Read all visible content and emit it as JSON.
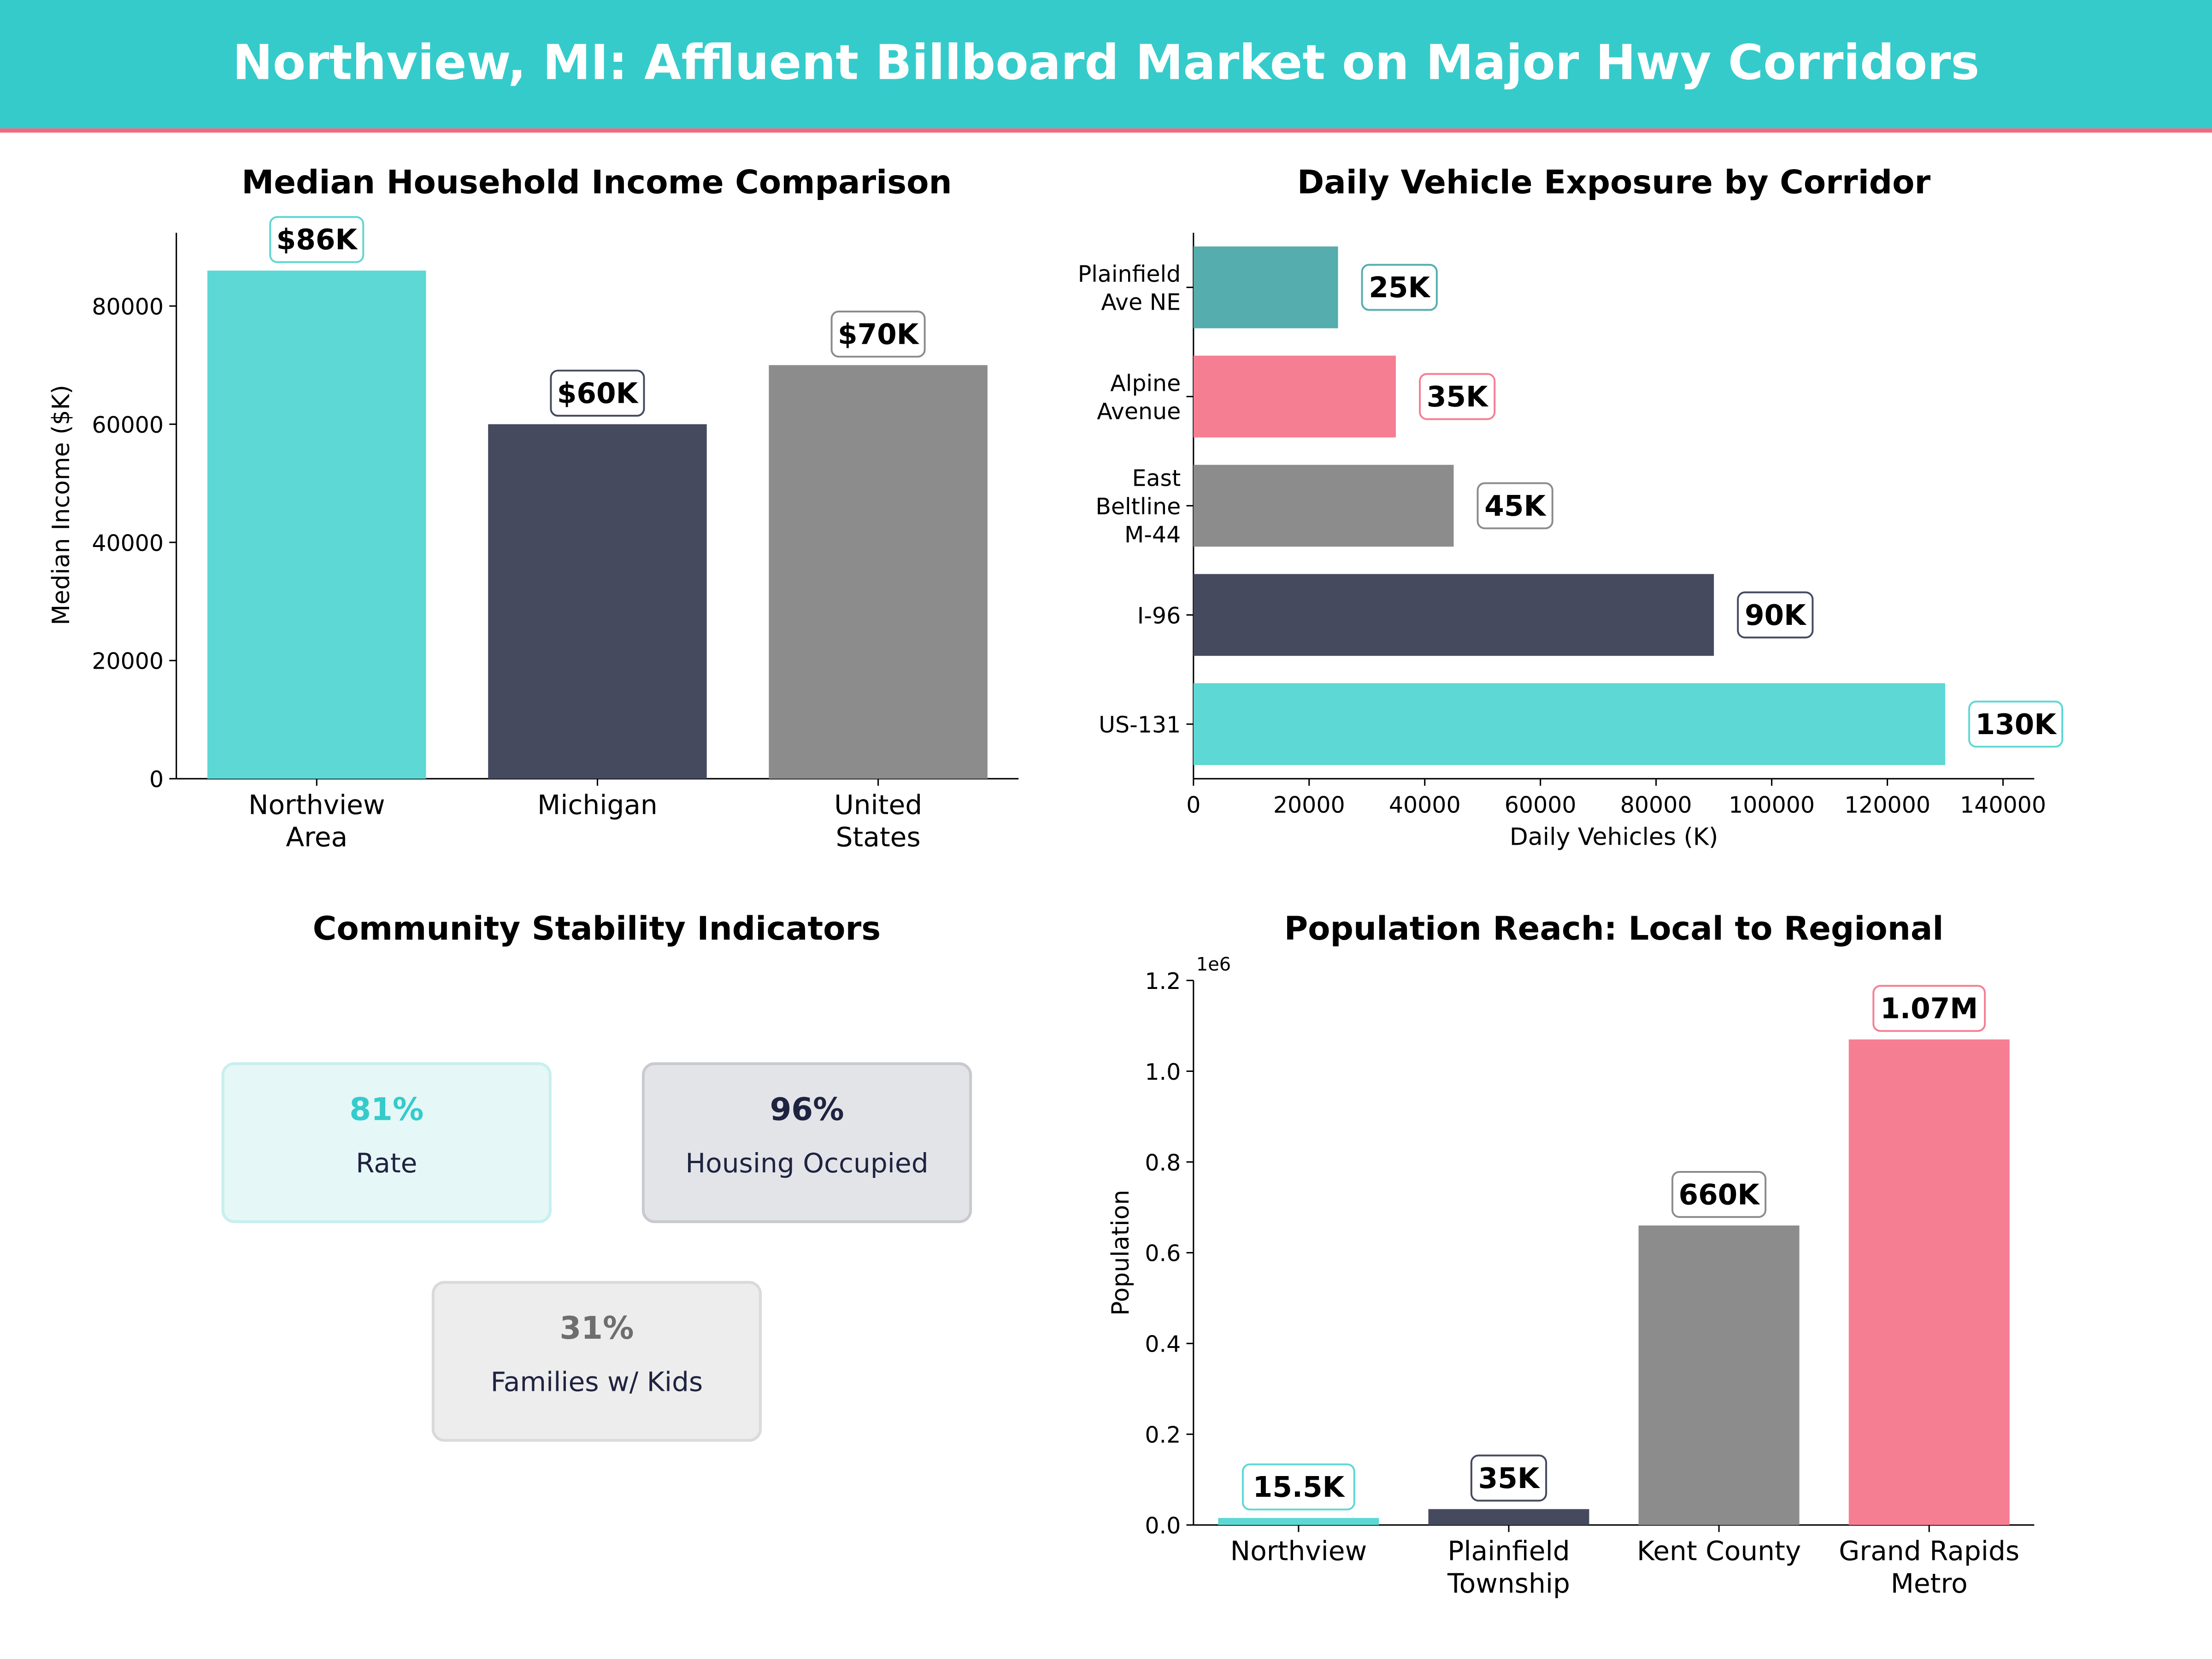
{
  "header": {
    "title": "Northview, MI: Affluent Billboard Market on Major Hwy Corridors",
    "bg_color": "#35CBCB",
    "accent_line_color": "#F06A80"
  },
  "chart_data": [
    {
      "type": "bar",
      "title": "Median Household Income Comparison",
      "xlabel": "",
      "ylabel": "Median Income ($K)",
      "categories": [
        "Northview\nArea",
        "Michigan",
        "United\nStates"
      ],
      "values": [
        86000,
        60000,
        70000
      ],
      "data_labels": [
        "$86K",
        "$60K",
        "$70K"
      ],
      "colors": [
        "#5DD8D4",
        "#464A5F",
        "#8C8C8C"
      ],
      "yticks": [
        0,
        20000,
        40000,
        60000,
        80000
      ],
      "ylim": [
        0,
        92400
      ],
      "grid": false
    },
    {
      "type": "bar",
      "orientation": "horizontal",
      "title": "Daily Vehicle Exposure by Corridor",
      "xlabel": "Daily Vehicles (K)",
      "ylabel": "",
      "categories": [
        "Plainfield\nAve NE",
        "Alpine\nAvenue",
        "East\nBeltline\nM-44",
        "I-96",
        "US-131"
      ],
      "values": [
        25000,
        35000,
        45000,
        90000,
        130000
      ],
      "data_labels": [
        "25K",
        "35K",
        "45K",
        "90K",
        "130K"
      ],
      "colors": [
        "#55ADAD",
        "#F67E93",
        "#8C8C8C",
        "#464A5F",
        "#5DD8D4"
      ],
      "xticks": [
        0,
        20000,
        40000,
        60000,
        80000,
        100000,
        120000,
        140000
      ],
      "xlim": [
        0,
        145400
      ],
      "grid": false
    },
    {
      "type": "bar",
      "title": "Population Reach: Local to Regional",
      "xlabel": "",
      "ylabel": "Population",
      "offset_label": "1e6",
      "categories": [
        "Northview",
        "Plainfield\nTownship",
        "Kent County",
        "Grand Rapids\nMetro"
      ],
      "values": [
        15500,
        35000,
        660000,
        1070000
      ],
      "data_labels": [
        "15.5K",
        "35K",
        "660K",
        "1.07M"
      ],
      "colors": [
        "#5DD8D4",
        "#464A5F",
        "#8C8C8C",
        "#F67E93"
      ],
      "yticks": [
        0,
        0.2,
        0.4,
        0.6,
        0.8,
        1.0,
        1.2
      ],
      "ytick_labels": [
        "0.0",
        "0.2",
        "0.4",
        "0.6",
        "0.8",
        "1.0",
        "1.2"
      ],
      "ylim": [
        0,
        1200000
      ],
      "grid": false
    }
  ],
  "stability": {
    "title": "Community Stability Indicators",
    "cards": [
      {
        "value": "81%",
        "label": "Rate",
        "value_color": "#35CBCB",
        "bg": "#E6F7F7",
        "border": "#C8EFEF"
      },
      {
        "value": "96%",
        "label": "Housing Occupied",
        "value_color": "#1E2340",
        "bg": "#E3E4E8",
        "border": "#C9CACE"
      },
      {
        "value": "31%",
        "label": "Families w/ Kids",
        "value_color": "#6E6E6E",
        "bg": "#EDEDED",
        "border": "#DADADA"
      }
    ]
  }
}
